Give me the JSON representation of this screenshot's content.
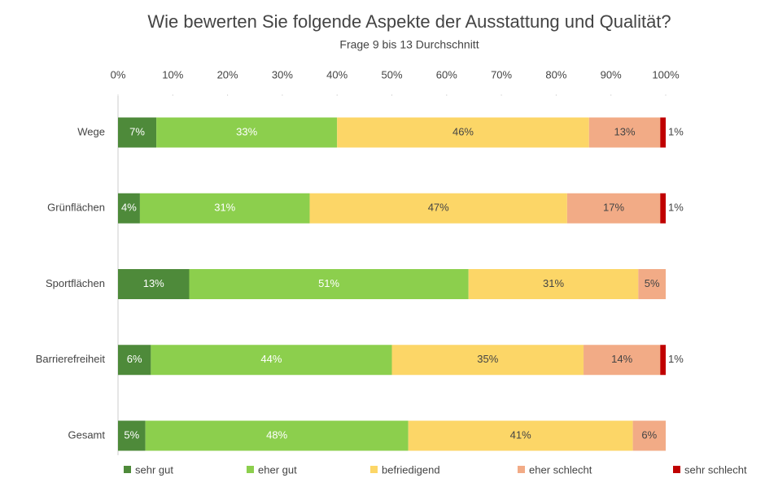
{
  "chart_data": {
    "type": "stacked-bar-horizontal",
    "title": "Wie bewerten Sie folgende Aspekte der Ausstattung und Qualität?",
    "subtitle": "Frage 9 bis 13 Durchschnitt",
    "categories": [
      "Wege",
      "Grünflächen",
      "Sportflächen",
      "Barrierefreiheit",
      "Gesamt"
    ],
    "series": [
      {
        "name": "sehr gut",
        "color": "#4e8a3a",
        "label_color": "#ffffff",
        "values": [
          7,
          4,
          13,
          6,
          5
        ],
        "value_labels": [
          "7%",
          "4%",
          "13%",
          "6%",
          "5%"
        ]
      },
      {
        "name": "eher gut",
        "color": "#8ccf4d",
        "label_color": "#ffffff",
        "values": [
          33,
          31,
          51,
          44,
          48
        ],
        "value_labels": [
          "33%",
          "31%",
          "51%",
          "44%",
          "48%"
        ]
      },
      {
        "name": "befriedigend",
        "color": "#fcd667",
        "label_color": "#444444",
        "values": [
          46,
          47,
          31,
          35,
          41
        ],
        "value_labels": [
          "46%",
          "47%",
          "31%",
          "35%",
          "41%"
        ]
      },
      {
        "name": "eher schlecht",
        "color": "#f2ab86",
        "label_color": "#444444",
        "values": [
          13,
          17,
          5,
          14,
          6
        ],
        "value_labels": [
          "13%",
          "17%",
          "5%",
          "14%",
          "6%"
        ]
      },
      {
        "name": "sehr schlecht",
        "color": "#c00000",
        "label_color": "#444444",
        "values": [
          1,
          1,
          null,
          1,
          null
        ],
        "value_labels": [
          "1%",
          "1%",
          null,
          "1%",
          null
        ]
      }
    ],
    "xlim": [
      0,
      100
    ],
    "xticks": [
      {
        "value": 0,
        "label": "0%"
      },
      {
        "value": 10,
        "label": "10%"
      },
      {
        "value": 20,
        "label": "20%"
      },
      {
        "value": 30,
        "label": "30%"
      },
      {
        "value": 40,
        "label": "40%"
      },
      {
        "value": 50,
        "label": "50%"
      },
      {
        "value": 60,
        "label": "60%"
      },
      {
        "value": 70,
        "label": "70%"
      },
      {
        "value": 80,
        "label": "80%"
      },
      {
        "value": 90,
        "label": "90%"
      },
      {
        "value": 100,
        "label": "100%"
      }
    ],
    "legend": "bottom"
  }
}
